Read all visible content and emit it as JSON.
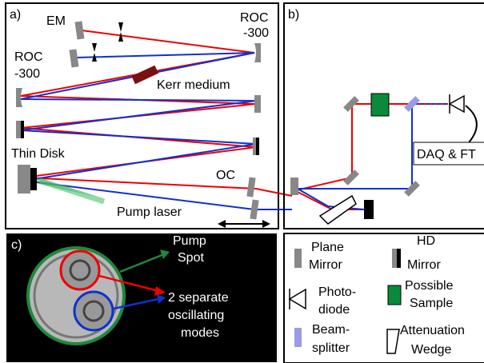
{
  "panel_a": {
    "label": "a)",
    "em": "EM",
    "roc_right": [
      "ROC",
      "-300"
    ],
    "roc_left": [
      "ROC",
      "-300"
    ],
    "kerr": "Kerr medium",
    "thin_disk": "Thin Disk",
    "oc": "OC",
    "pump": "Pump laser"
  },
  "panel_b": {
    "label": "b)",
    "daq": "DAQ & FT"
  },
  "panel_c": {
    "label": "c)",
    "pump_spot": [
      "Pump",
      "Spot"
    ],
    "modes": [
      "2 separate",
      "oscillating",
      "modes"
    ]
  },
  "legend": {
    "plane_mirror": [
      "Plane",
      "Mirror"
    ],
    "hd_mirror": [
      "HD",
      "Mirror"
    ],
    "photodiode": [
      "Photo-",
      "diode"
    ],
    "sample": [
      "Possible",
      "Sample"
    ],
    "beamsplitter": [
      "Beam-",
      "splitter"
    ],
    "wedge": [
      "Attenuation",
      "Wedge"
    ]
  }
}
